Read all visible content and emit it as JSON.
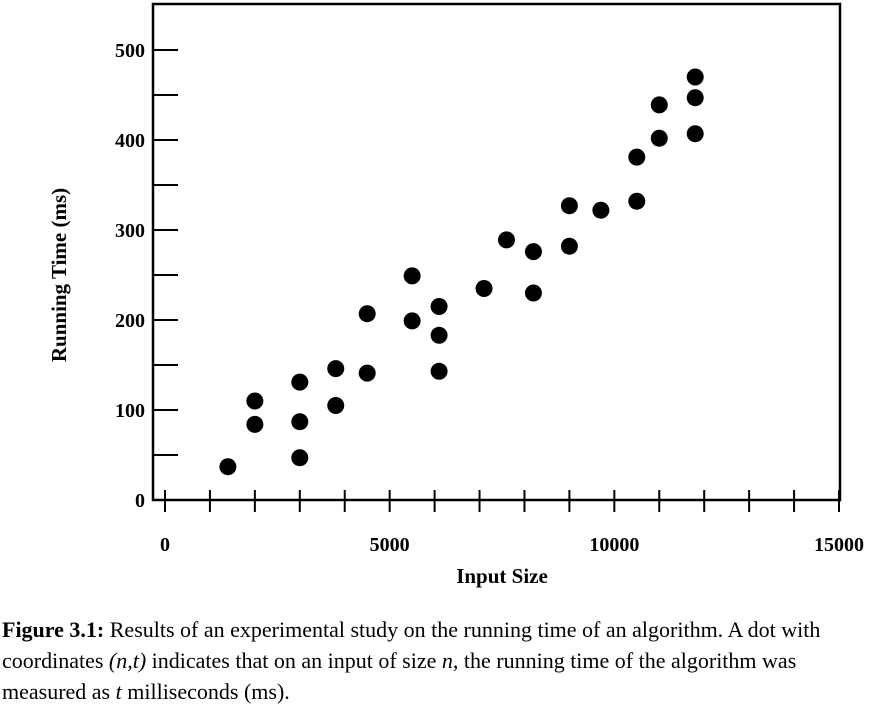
{
  "chart_data": {
    "type": "scatter",
    "xlabel": "Input Size",
    "ylabel": "Running Time (ms)",
    "xlim": [
      0,
      15000
    ],
    "ylim": [
      0,
      550
    ],
    "x_ticks": [
      0,
      5000,
      10000,
      15000
    ],
    "y_ticks": [
      0,
      100,
      200,
      300,
      400,
      500
    ],
    "x_minor_tick_step": 1000,
    "y_minor_tick_step": 50,
    "grid": false,
    "marker_color": "#000000",
    "points": [
      {
        "x": 1400,
        "y": 37
      },
      {
        "x": 2000,
        "y": 110
      },
      {
        "x": 2000,
        "y": 84
      },
      {
        "x": 3000,
        "y": 131
      },
      {
        "x": 3000,
        "y": 87
      },
      {
        "x": 3000,
        "y": 47
      },
      {
        "x": 3800,
        "y": 146
      },
      {
        "x": 3800,
        "y": 105
      },
      {
        "x": 4500,
        "y": 207
      },
      {
        "x": 4500,
        "y": 141
      },
      {
        "x": 5500,
        "y": 249
      },
      {
        "x": 5500,
        "y": 199
      },
      {
        "x": 6100,
        "y": 215
      },
      {
        "x": 6100,
        "y": 183
      },
      {
        "x": 6100,
        "y": 143
      },
      {
        "x": 7100,
        "y": 235
      },
      {
        "x": 7600,
        "y": 289
      },
      {
        "x": 8200,
        "y": 276
      },
      {
        "x": 8200,
        "y": 230
      },
      {
        "x": 9000,
        "y": 327
      },
      {
        "x": 9000,
        "y": 282
      },
      {
        "x": 9700,
        "y": 322
      },
      {
        "x": 10500,
        "y": 381
      },
      {
        "x": 10500,
        "y": 332
      },
      {
        "x": 11000,
        "y": 439
      },
      {
        "x": 11000,
        "y": 402
      },
      {
        "x": 11800,
        "y": 470
      },
      {
        "x": 11800,
        "y": 447
      },
      {
        "x": 11800,
        "y": 407
      }
    ]
  },
  "caption": {
    "label": "Figure 3.1:",
    "text_1": " Results of an experimental study on the running time of an algorithm. A dot with coordinates ",
    "coords": "(n,t)",
    "text_2": " indicates that on an input of size ",
    "var_n": "n",
    "text_3": ", the running time of the algorithm was measured as ",
    "var_t": "t",
    "text_4": " milliseconds (ms)."
  }
}
